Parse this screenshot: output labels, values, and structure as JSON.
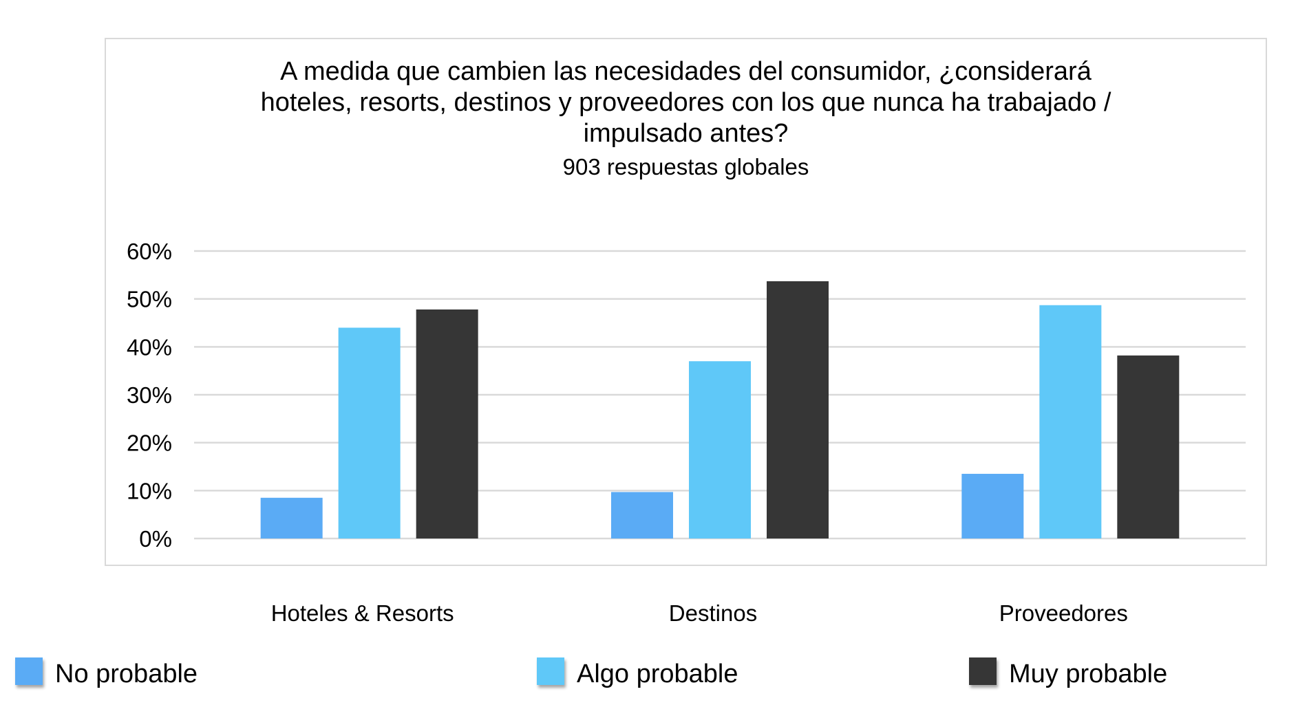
{
  "chart_data": {
    "type": "bar",
    "title": "A medida que cambien las necesidades del consumidor, ¿considerará\nhoteles, resorts, destinos y proveedores con los que nunca ha trabajado /\nimpulsado antes?",
    "subtitle": "903 respuestas globales",
    "categories": [
      "Hoteles & Resorts",
      "Destinos",
      "Proveedores"
    ],
    "series": [
      {
        "name": "No probable",
        "color": "#5aabf5",
        "values": [
          8.5,
          9.7,
          13.5
        ]
      },
      {
        "name": "Algo probable",
        "color": "#5fc8f8",
        "values": [
          44,
          37,
          48.7
        ]
      },
      {
        "name": "Muy probable",
        "color": "#363636",
        "values": [
          47.8,
          53.7,
          38.2
        ]
      }
    ],
    "ylim": [
      0,
      60
    ],
    "yticks": [
      0,
      10,
      20,
      30,
      40,
      50,
      60
    ],
    "ytick_labels": [
      "0%",
      "10%",
      "20%",
      "30%",
      "40%",
      "50%",
      "60%"
    ],
    "grid": true,
    "legend_position": "bottom",
    "xlabel": "",
    "ylabel": ""
  }
}
